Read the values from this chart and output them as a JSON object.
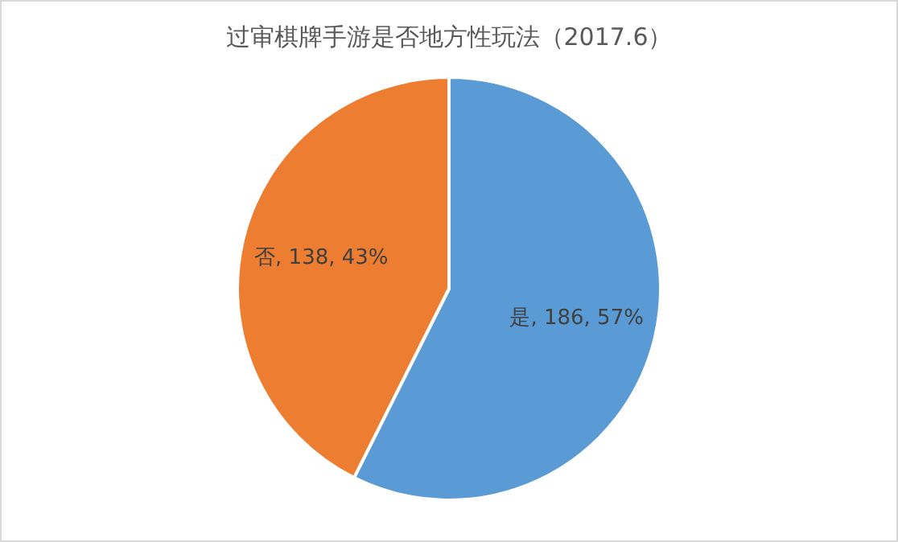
{
  "chart_data": {
    "type": "pie",
    "title": "过审棋牌手游是否地方性玩法（2017.6）",
    "categories": [
      "是",
      "否"
    ],
    "values": [
      186,
      138
    ],
    "colors": [
      "#5b9bd5",
      "#ed7d31"
    ],
    "value_labels": [
      "186, 57%",
      "138, 43%"
    ],
    "legend": false
  }
}
